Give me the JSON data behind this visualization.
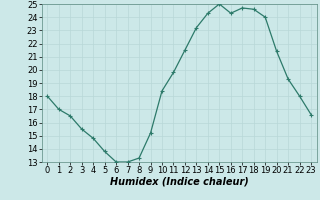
{
  "x": [
    0,
    1,
    2,
    3,
    4,
    5,
    6,
    7,
    8,
    9,
    10,
    11,
    12,
    13,
    14,
    15,
    16,
    17,
    18,
    19,
    20,
    21,
    22,
    23
  ],
  "y": [
    18,
    17,
    16.5,
    15.5,
    14.8,
    13.8,
    13.0,
    13.0,
    13.3,
    15.2,
    18.4,
    19.8,
    21.5,
    23.2,
    24.3,
    25.0,
    24.3,
    24.7,
    24.6,
    24.0,
    21.4,
    19.3,
    18.0,
    16.6
  ],
  "xlabel": "Humidex (Indice chaleur)",
  "ylim": [
    13,
    25
  ],
  "xlim": [
    -0.5,
    23.5
  ],
  "yticks": [
    13,
    14,
    15,
    16,
    17,
    18,
    19,
    20,
    21,
    22,
    23,
    24,
    25
  ],
  "xticks": [
    0,
    1,
    2,
    3,
    4,
    5,
    6,
    7,
    8,
    9,
    10,
    11,
    12,
    13,
    14,
    15,
    16,
    17,
    18,
    19,
    20,
    21,
    22,
    23
  ],
  "line_color": "#2d7a6a",
  "bg_color": "#cce8e8",
  "grid_color": "#b8d8d8",
  "xlabel_fontsize": 7,
  "tick_fontsize": 6
}
